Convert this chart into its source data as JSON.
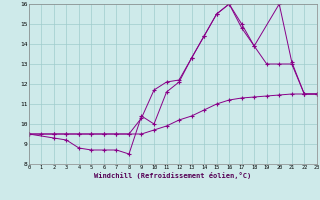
{
  "xlabel": "Windchill (Refroidissement éolien,°C)",
  "bg_color": "#ceeaea",
  "grid_color": "#a0cccc",
  "line_color": "#880088",
  "xmin": 0,
  "xmax": 23,
  "ymin": 8,
  "ymax": 16,
  "series1_x": [
    0,
    1,
    2,
    3,
    4,
    5,
    6,
    7,
    8,
    9,
    10,
    11,
    12,
    13,
    14,
    15,
    16,
    17,
    18,
    19,
    20,
    21,
    22,
    23
  ],
  "series1_y": [
    9.5,
    9.5,
    9.5,
    9.5,
    9.5,
    9.5,
    9.5,
    9.5,
    9.5,
    9.5,
    9.7,
    9.9,
    10.2,
    10.4,
    10.7,
    11.0,
    11.2,
    11.3,
    11.35,
    11.4,
    11.45,
    11.5,
    11.5,
    11.5
  ],
  "series2_x": [
    0,
    2,
    3,
    4,
    5,
    6,
    7,
    8,
    9,
    10,
    11,
    12,
    13,
    14,
    15,
    16,
    17,
    18,
    19,
    20,
    21,
    22,
    23
  ],
  "series2_y": [
    9.5,
    9.5,
    9.5,
    9.5,
    9.5,
    9.5,
    9.5,
    9.5,
    10.3,
    11.7,
    12.1,
    12.2,
    13.3,
    14.4,
    15.5,
    16.0,
    14.8,
    13.9,
    13.0,
    13.0,
    13.0,
    11.5,
    11.5
  ],
  "series3_x": [
    0,
    2,
    3,
    4,
    5,
    6,
    7,
    8,
    9,
    10,
    11,
    12,
    13,
    14,
    15,
    16,
    17,
    18,
    20,
    21,
    22,
    23
  ],
  "series3_y": [
    9.5,
    9.3,
    9.2,
    8.8,
    8.7,
    8.7,
    8.7,
    8.5,
    10.4,
    10.0,
    11.6,
    12.1,
    13.3,
    14.4,
    15.5,
    16.0,
    15.0,
    13.9,
    16.0,
    13.1,
    11.5,
    11.5
  ]
}
